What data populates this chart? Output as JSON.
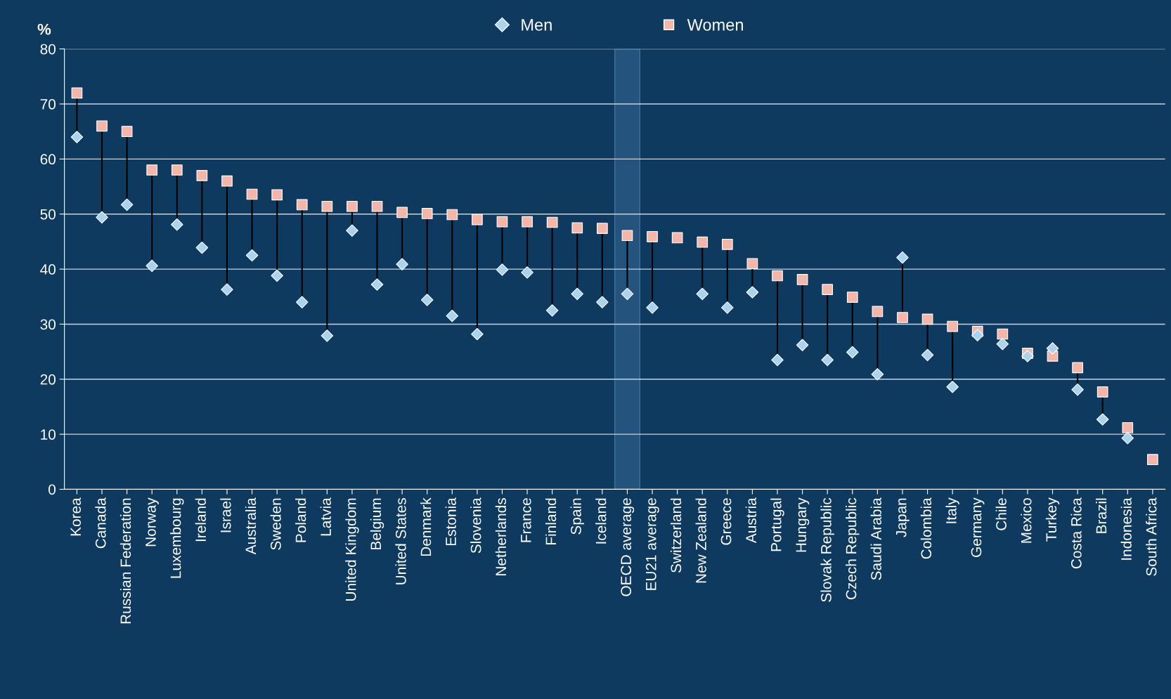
{
  "chart_data": {
    "type": "scatter",
    "ylabel": "%",
    "categories": [
      "Korea",
      "Canada",
      "Russian Federation",
      "Norway",
      "Luxembourg",
      "Ireland",
      "Israel",
      "Australia",
      "Sweden",
      "Poland",
      "Latvia",
      "United Kingdom",
      "Belgium",
      "United States",
      "Denmark",
      "Estonia",
      "Slovenia",
      "Netherlands",
      "France",
      "Finland",
      "Spain",
      "Iceland",
      "OECD average",
      "EU21 average",
      "Switzerland",
      "New Zealand",
      "Greece",
      "Austria",
      "Portugal",
      "Hungary",
      "Slovak Republic",
      "Czech Republic",
      "Saudi Arabia",
      "Japan",
      "Colombia",
      "Italy",
      "Germany",
      "Chile",
      "Mexico",
      "Turkey",
      "Costa Rica",
      "Brazil",
      "Indonesia",
      "South Africa"
    ],
    "series": [
      {
        "name": "Men",
        "color": "#a9d3ee",
        "marker": "diamond",
        "values": [
          64,
          49.4,
          51.7,
          40.6,
          48.1,
          43.9,
          36.3,
          42.5,
          38.8,
          34,
          27.9,
          47,
          37.2,
          40.9,
          34.4,
          31.5,
          28.2,
          39.9,
          39.4,
          32.5,
          35.5,
          34,
          35.5,
          33,
          null,
          35.5,
          33,
          35.8,
          23.5,
          26.2,
          23.5,
          24.9,
          20.9,
          42.1,
          24.4,
          18.6,
          28,
          26.4,
          24.2,
          25.6,
          18.1,
          12.7,
          9.3,
          null
        ]
      },
      {
        "name": "Women",
        "color": "#f4b6a8",
        "marker": "square",
        "values": [
          72,
          66,
          65,
          58,
          58,
          57,
          56,
          53.6,
          53.5,
          51.7,
          51.4,
          51.4,
          51.4,
          50.3,
          50.1,
          49.9,
          49,
          48.6,
          48.6,
          48.5,
          47.5,
          47.4,
          46.1,
          45.9,
          45.7,
          44.9,
          44.5,
          41,
          38.8,
          38.1,
          36.3,
          34.9,
          32.3,
          31.2,
          30.9,
          29.6,
          28.7,
          28.2,
          24.7,
          24.2,
          22.1,
          17.7,
          11.2,
          5.4
        ]
      }
    ],
    "ylim": [
      0,
      80
    ],
    "yticks": [
      0,
      10,
      20,
      30,
      40,
      50,
      60,
      70,
      80
    ],
    "grid": "y",
    "legend": "top",
    "bands": [
      {
        "axis": "x",
        "from": "OECD average",
        "to": "OECD average",
        "color": "#2a5a86"
      }
    ]
  }
}
